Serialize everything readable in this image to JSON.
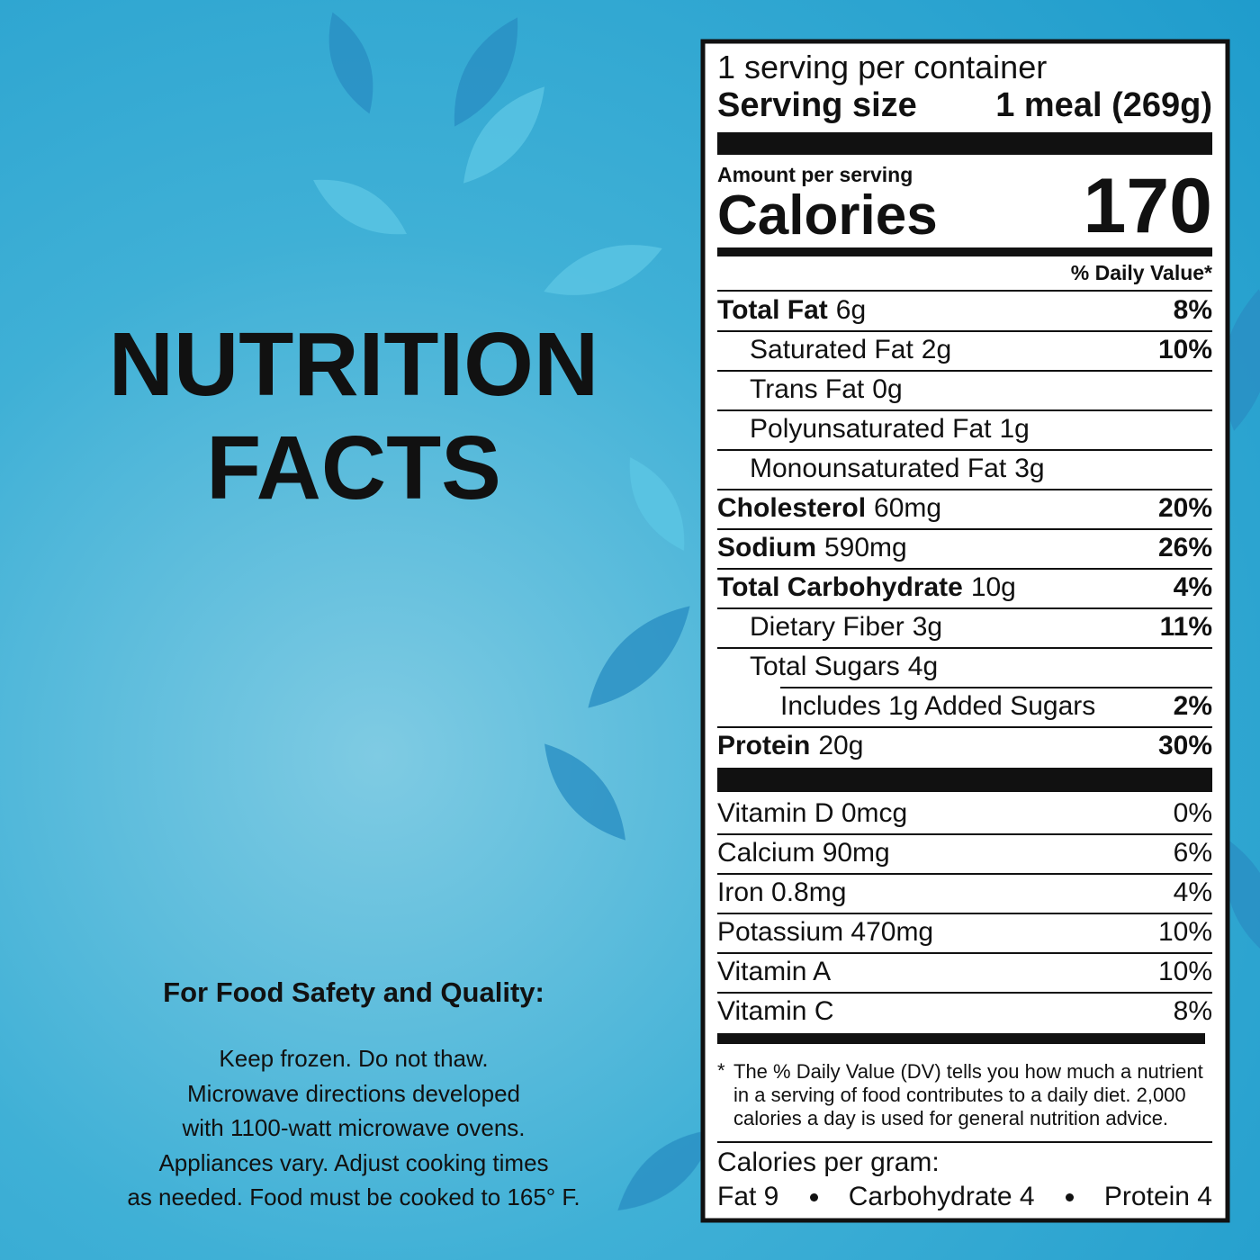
{
  "left": {
    "title_lines": [
      "NUTRITION",
      "FACTS"
    ],
    "safety_heading": "For Food Safety and Quality:",
    "safety_lines": [
      "Keep frozen. Do not thaw.",
      "Microwave directions developed",
      "with 1100-watt microwave ovens.",
      "Appliances vary. Adjust cooking times",
      "as needed. Food must be cooked to 165° F."
    ]
  },
  "label": {
    "servings": "1 serving per container",
    "serving_size_label": "Serving size",
    "serving_size": "1 meal (269g)",
    "amount_per_serving": "Amount per serving",
    "calories_label": "Calories",
    "calories": "170",
    "daily_value_header": "% Daily Value*",
    "nutrients": [
      {
        "name": "Total Fat",
        "amount": "6g",
        "dv": "8%",
        "sub": [
          {
            "name": "Saturated Fat",
            "amount": "2g",
            "dv": "10%"
          },
          {
            "name": "Trans Fat",
            "amount": "0g"
          },
          {
            "name": "Polyunsaturated Fat",
            "amount": "1g"
          },
          {
            "name": "Monounsaturated Fat",
            "amount": "3g"
          }
        ]
      },
      {
        "name": "Cholesterol",
        "amount": "60mg",
        "dv": "20%"
      },
      {
        "name": "Sodium",
        "amount": "590mg",
        "dv": "26%"
      },
      {
        "name": "Total Carbohydrate",
        "amount": "10g",
        "dv": "4%",
        "sub": [
          {
            "name": "Dietary Fiber",
            "amount": "3g",
            "dv": "11%"
          },
          {
            "name": "Total Sugars",
            "amount": "4g",
            "sub": [
              {
                "text": "Includes 1g Added Sugars",
                "dv": "2%"
              }
            ]
          }
        ]
      },
      {
        "name": "Protein",
        "amount": "20g",
        "dv": "30%"
      }
    ],
    "vitamins": [
      {
        "text": "Vitamin D 0mcg",
        "dv": "0%"
      },
      {
        "text": "Calcium 90mg",
        "dv": "6%"
      },
      {
        "text": "Iron 0.8mg",
        "dv": "4%"
      },
      {
        "text": "Potassium 470mg",
        "dv": "10%"
      },
      {
        "text": "Vitamin A",
        "dv": "10%"
      },
      {
        "text": "Vitamin C",
        "dv": "8%"
      }
    ],
    "footnote_marker": "*",
    "footnote": "The % Daily Value (DV) tells you how much a nutrient in a serving of food contributes to a daily diet. 2,000 calories a day is used for general nutrition advice.",
    "calories_per_gram": "Calories per gram:",
    "per_gram": [
      "Fat 9",
      "Carbohydrate 4",
      "Protein 4"
    ]
  }
}
